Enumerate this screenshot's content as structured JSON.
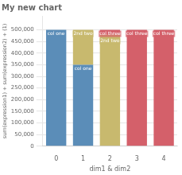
{
  "chart_data": {
    "type": "bar",
    "stacked": true,
    "title": "My new chart",
    "categories": [
      0,
      1,
      2,
      3,
      4
    ],
    "series": [
      {
        "name": "col one",
        "color": "#5b8db8",
        "values": [
          500000,
          350000,
          0,
          0,
          0
        ]
      },
      {
        "name": "2nd two",
        "color": "#c8b96e",
        "values": [
          0,
          150000,
          480000,
          0,
          0
        ]
      },
      {
        "name": "col three",
        "color": "#d4606a",
        "values": [
          0,
          0,
          20000,
          500000,
          500000
        ]
      }
    ],
    "ylabel": "sum(expression1) + sum(expression2) + (1)",
    "xlabel": "dim1 & dim2",
    "ylim": [
      0,
      560000
    ],
    "yticks": [
      0,
      {
        "value": 50000,
        "label": "50,000"
      },
      {
        "value": 100000,
        "label": "100,000"
      },
      {
        "value": 150000,
        "label": "150,000"
      },
      {
        "value": 200000,
        "label": "200,000"
      },
      {
        "value": 250000,
        "label": "250,000"
      },
      {
        "value": 300000,
        "label": "300,000"
      },
      {
        "value": 350000,
        "label": "350,000"
      },
      {
        "value": 400000,
        "label": "400,000"
      },
      {
        "value": 450000,
        "label": "450,000"
      },
      {
        "value": 500000,
        "label": "500,000"
      }
    ],
    "grid": true
  }
}
